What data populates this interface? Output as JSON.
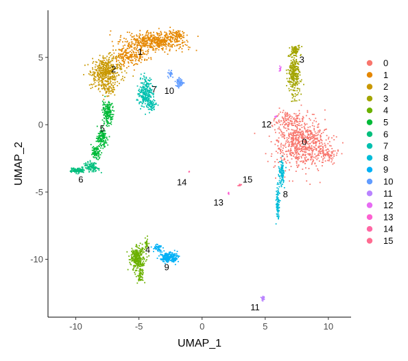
{
  "chart_data": {
    "type": "scatter",
    "xlabel": "UMAP_1",
    "ylabel": "UMAP_2",
    "xlim": [
      -12.2,
      11.8
    ],
    "ylim": [
      -14.3,
      8.5
    ],
    "x_ticks": [
      -10,
      -5,
      0,
      5,
      10
    ],
    "y_ticks": [
      5,
      0,
      -5,
      -10
    ],
    "grid": false,
    "legend_position": "right",
    "legend": [
      "0",
      "1",
      "2",
      "3",
      "4",
      "5",
      "6",
      "7",
      "8",
      "9",
      "10",
      "11",
      "12",
      "13",
      "14",
      "15"
    ],
    "colors": {
      "0": "#F8766D",
      "1": "#E58700",
      "2": "#C99800",
      "3": "#A3A500",
      "4": "#6BB100",
      "5": "#00BA38",
      "6": "#00BF7D",
      "7": "#00C0AF",
      "8": "#00BCD8",
      "9": "#00B0F6",
      "10": "#619CFF",
      "11": "#B983FF",
      "12": "#E76BF3",
      "13": "#FD61D1",
      "14": "#FF67A4",
      "15": "#FF6C91"
    },
    "clusters": [
      {
        "id": "0",
        "label": "0",
        "label_x": 8.1,
        "label_y": -1.3,
        "centers": [
          [
            7.8,
            -1.3,
            1.9,
            1.7,
            700
          ],
          [
            6.8,
            0.4,
            0.9,
            0.6,
            80
          ],
          [
            9.8,
            -2.2,
            0.8,
            0.6,
            80
          ]
        ]
      },
      {
        "id": "1",
        "label": "1",
        "label_x": -4.9,
        "label_y": 5.4,
        "centers": [
          [
            -3.7,
            6.2,
            2.3,
            0.6,
            500
          ],
          [
            -5.8,
            5.1,
            1.2,
            0.6,
            200
          ],
          [
            -2.0,
            6.7,
            0.6,
            0.3,
            60
          ]
        ]
      },
      {
        "id": "2",
        "label": "2",
        "label_x": -7.0,
        "label_y": 4.1,
        "centers": [
          [
            -7.6,
            3.9,
            1.1,
            0.9,
            450
          ],
          [
            -7.5,
            2.6,
            0.5,
            0.5,
            60
          ]
        ]
      },
      {
        "id": "3",
        "label": "3",
        "label_x": 7.9,
        "label_y": 4.8,
        "centers": [
          [
            7.3,
            3.8,
            0.45,
            1.5,
            300
          ],
          [
            7.4,
            5.6,
            0.35,
            0.3,
            60
          ]
        ]
      },
      {
        "id": "4",
        "label": "4",
        "label_x": -4.3,
        "label_y": -9.3,
        "centers": [
          [
            -5.1,
            -9.9,
            0.5,
            0.7,
            300
          ],
          [
            -4.9,
            -11.2,
            0.25,
            0.5,
            60
          ],
          [
            -4.4,
            -8.8,
            0.15,
            0.4,
            30
          ]
        ]
      },
      {
        "id": "5",
        "label": "5",
        "label_x": -7.9,
        "label_y": -0.3,
        "centers": [
          [
            -7.5,
            0.9,
            0.35,
            0.8,
            160
          ],
          [
            -7.9,
            -1.0,
            0.35,
            0.6,
            120
          ],
          [
            -8.4,
            -2.1,
            0.3,
            0.5,
            80
          ]
        ]
      },
      {
        "id": "6",
        "label": "6",
        "label_x": -9.6,
        "label_y": -4.1,
        "centers": [
          [
            -9.9,
            -3.4,
            0.5,
            0.15,
            120
          ],
          [
            -8.8,
            -3.1,
            0.5,
            0.35,
            100
          ]
        ]
      },
      {
        "id": "7",
        "label": "7",
        "label_x": -3.8,
        "label_y": 2.6,
        "centers": [
          [
            -4.5,
            2.3,
            0.5,
            1.0,
            240
          ],
          [
            -4.0,
            1.5,
            0.35,
            0.4,
            60
          ]
        ]
      },
      {
        "id": "8",
        "label": "8",
        "label_x": 6.6,
        "label_y": -5.2,
        "centers": [
          [
            6.3,
            -3.6,
            0.2,
            0.9,
            100
          ],
          [
            6.0,
            -6.0,
            0.12,
            1.2,
            90
          ]
        ]
      },
      {
        "id": "9",
        "label": "9",
        "label_x": -2.8,
        "label_y": -10.6,
        "centers": [
          [
            -2.6,
            -9.9,
            0.7,
            0.35,
            220
          ],
          [
            -3.5,
            -9.2,
            0.35,
            0.35,
            40
          ]
        ]
      },
      {
        "id": "10",
        "label": "10",
        "label_x": -2.6,
        "label_y": 2.5,
        "centers": [
          [
            -1.8,
            3.1,
            0.25,
            0.3,
            60
          ],
          [
            -2.5,
            3.8,
            0.2,
            0.35,
            25
          ]
        ]
      },
      {
        "id": "11",
        "label": "11",
        "label_x": 4.2,
        "label_y": -13.6,
        "centers": [
          [
            4.8,
            -12.9,
            0.12,
            0.2,
            20
          ]
        ]
      },
      {
        "id": "12",
        "label": "12",
        "label_x": 5.1,
        "label_y": 0.0,
        "centers": [
          [
            6.2,
            4.1,
            0.08,
            0.25,
            10
          ],
          [
            5.8,
            0.6,
            0.1,
            0.1,
            6
          ]
        ]
      },
      {
        "id": "13",
        "label": "13",
        "label_x": 1.3,
        "label_y": -5.8,
        "centers": [
          [
            2.1,
            -5.1,
            0.06,
            0.08,
            6
          ]
        ]
      },
      {
        "id": "14",
        "label": "14",
        "label_x": -1.6,
        "label_y": -4.3,
        "centers": [
          [
            -1.0,
            -3.5,
            0.05,
            0.05,
            4
          ]
        ]
      },
      {
        "id": "15",
        "label": "15",
        "label_x": 3.6,
        "label_y": -4.1,
        "centers": [
          [
            3.0,
            -4.5,
            0.2,
            0.08,
            8
          ]
        ]
      }
    ]
  }
}
